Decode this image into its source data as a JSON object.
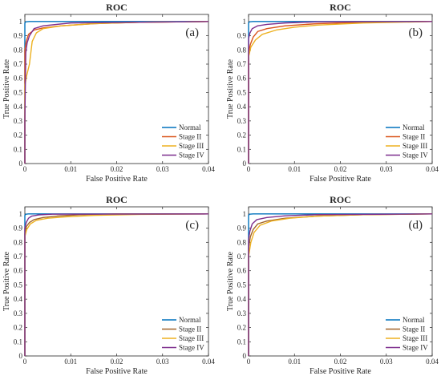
{
  "figure": {
    "colors": {
      "axis": "#262626",
      "Normal": "#0072BD",
      "Stage II": "#D95319",
      "Stage III": "#EDB120",
      "Stage IV": "#7E2F8E",
      "Stage II (c,d)": "#A2642A",
      "Stage III (c,d)": "#EDB120"
    }
  },
  "chart_data": [
    {
      "panel": "(a)",
      "type": "line",
      "title": "ROC",
      "xlabel": "False Positive Rate",
      "ylabel": "True Positive Rate",
      "xlim": [
        0,
        0.04
      ],
      "ylim": [
        0,
        1.05
      ],
      "xticks": [
        "0",
        "0.01",
        "0.02",
        "0.03",
        "0.04"
      ],
      "yticks": [
        "0",
        "0.1",
        "0.2",
        "0.3",
        "0.4",
        "0.5",
        "0.6",
        "0.7",
        "0.8",
        "0.9",
        "1"
      ],
      "grid": false,
      "legend_loc": "lower-right",
      "series": [
        {
          "name": "Normal",
          "color": "#0072BD",
          "x": [
            0,
            0,
            0.0002,
            0.001,
            0.04
          ],
          "y": [
            0,
            0.99,
            0.998,
            1.0,
            1.0
          ]
        },
        {
          "name": "Stage II",
          "color": "#D95319",
          "x": [
            0,
            0,
            0.0003,
            0.0008,
            0.002,
            0.004,
            0.008,
            0.015,
            0.025,
            0.04
          ],
          "y": [
            0,
            0.8,
            0.86,
            0.91,
            0.94,
            0.955,
            0.97,
            0.985,
            0.995,
            1.0
          ]
        },
        {
          "name": "Stage III",
          "color": "#EDB120",
          "x": [
            0,
            0,
            0.0004,
            0.001,
            0.0016,
            0.0025,
            0.004,
            0.008,
            0.015,
            0.025,
            0.04
          ],
          "y": [
            0,
            0.55,
            0.62,
            0.7,
            0.86,
            0.92,
            0.95,
            0.97,
            0.985,
            0.995,
            1.0
          ]
        },
        {
          "name": "Stage IV",
          "color": "#7E2F8E",
          "x": [
            0,
            0,
            0.0002,
            0.0005,
            0.001,
            0.002,
            0.004,
            0.01,
            0.04
          ],
          "y": [
            0,
            0.3,
            0.78,
            0.85,
            0.9,
            0.95,
            0.97,
            0.99,
            1.0
          ]
        }
      ]
    },
    {
      "panel": "(b)",
      "type": "line",
      "title": "ROC",
      "xlabel": "False Positive Rate",
      "ylabel": "True Positive Rate",
      "xlim": [
        0,
        0.04
      ],
      "ylim": [
        0,
        1.05
      ],
      "xticks": [
        "0",
        "0.01",
        "0.02",
        "0.03",
        "0.04"
      ],
      "yticks": [
        "0",
        "0.1",
        "0.2",
        "0.3",
        "0.4",
        "0.5",
        "0.6",
        "0.7",
        "0.8",
        "0.9",
        "1"
      ],
      "grid": false,
      "legend_loc": "lower-right",
      "series": [
        {
          "name": "Normal",
          "color": "#0072BD",
          "x": [
            0,
            0,
            0.0002,
            0.001,
            0.04
          ],
          "y": [
            0,
            0.99,
            0.998,
            1.0,
            1.0
          ]
        },
        {
          "name": "Stage II",
          "color": "#D95319",
          "x": [
            0,
            0,
            0.0004,
            0.001,
            0.002,
            0.004,
            0.008,
            0.015,
            0.025,
            0.04
          ],
          "y": [
            0,
            0.78,
            0.84,
            0.89,
            0.93,
            0.95,
            0.97,
            0.985,
            0.995,
            1.0
          ]
        },
        {
          "name": "Stage III",
          "color": "#EDB120",
          "x": [
            0,
            0,
            0.0005,
            0.0015,
            0.003,
            0.006,
            0.01,
            0.015,
            0.025,
            0.04
          ],
          "y": [
            0,
            0.75,
            0.82,
            0.87,
            0.91,
            0.94,
            0.96,
            0.975,
            0.99,
            1.0
          ]
        },
        {
          "name": "Stage IV",
          "color": "#7E2F8E",
          "x": [
            0,
            0,
            0.0003,
            0.0008,
            0.002,
            0.004,
            0.008,
            0.015,
            0.04
          ],
          "y": [
            0,
            0.88,
            0.92,
            0.95,
            0.97,
            0.98,
            0.99,
            0.998,
            1.0
          ]
        }
      ]
    },
    {
      "panel": "(c)",
      "type": "line",
      "title": "ROC",
      "xlabel": "False Positive Rate",
      "ylabel": "True Positive Rate",
      "xlim": [
        0,
        0.04
      ],
      "ylim": [
        0,
        1.05
      ],
      "xticks": [
        "0",
        "0.01",
        "0.02",
        "0.03",
        "0.04"
      ],
      "yticks": [
        "0",
        "0.1",
        "0.2",
        "0.3",
        "0.4",
        "0.5",
        "0.6",
        "0.7",
        "0.8",
        "0.9",
        "1"
      ],
      "grid": false,
      "legend_loc": "lower-right",
      "series": [
        {
          "name": "Normal",
          "color": "#0072BD",
          "x": [
            0,
            0,
            0.0002,
            0.0008,
            0.04
          ],
          "y": [
            0,
            0.99,
            0.998,
            1.0,
            1.0
          ]
        },
        {
          "name": "Stage II",
          "color": "#A2642A",
          "x": [
            0,
            0,
            0.0003,
            0.001,
            0.002,
            0.004,
            0.007,
            0.012,
            0.02,
            0.04
          ],
          "y": [
            0,
            0.86,
            0.91,
            0.94,
            0.96,
            0.975,
            0.985,
            0.995,
            1.0,
            1.0
          ]
        },
        {
          "name": "Stage III",
          "color": "#EDB120",
          "x": [
            0,
            0,
            0.0004,
            0.0012,
            0.0025,
            0.005,
            0.009,
            0.015,
            0.025,
            0.04
          ],
          "y": [
            0,
            0.84,
            0.89,
            0.93,
            0.955,
            0.97,
            0.98,
            0.99,
            0.997,
            1.0
          ]
        },
        {
          "name": "Stage IV",
          "color": "#7E2F8E",
          "x": [
            0,
            0,
            0.0003,
            0.0008,
            0.0015,
            0.003,
            0.006,
            0.04
          ],
          "y": [
            0,
            0.9,
            0.94,
            0.97,
            0.985,
            0.993,
            0.998,
            1.0
          ]
        }
      ]
    },
    {
      "panel": "(d)",
      "type": "line",
      "title": "ROC",
      "xlabel": "False Positive Rate",
      "ylabel": "True Positive Rate",
      "xlim": [
        0,
        0.04
      ],
      "ylim": [
        0,
        1.05
      ],
      "xticks": [
        "0",
        "0.01",
        "0.02",
        "0.03",
        "0.04"
      ],
      "yticks": [
        "0",
        "0.1",
        "0.2",
        "0.3",
        "0.4",
        "0.5",
        "0.6",
        "0.7",
        "0.8",
        "0.9",
        "1"
      ],
      "grid": false,
      "legend_loc": "lower-right",
      "series": [
        {
          "name": "Normal",
          "color": "#0072BD",
          "x": [
            0,
            0,
            0.0002,
            0.001,
            0.04
          ],
          "y": [
            0,
            0.99,
            0.998,
            1.0,
            1.0
          ]
        },
        {
          "name": "Stage II",
          "color": "#A2642A",
          "x": [
            0,
            0,
            0.0004,
            0.001,
            0.002,
            0.004,
            0.008,
            0.015,
            0.025,
            0.04
          ],
          "y": [
            0,
            0.76,
            0.84,
            0.89,
            0.93,
            0.95,
            0.97,
            0.985,
            0.995,
            1.0
          ]
        },
        {
          "name": "Stage III",
          "color": "#EDB120",
          "x": [
            0,
            0,
            0.0005,
            0.0012,
            0.0025,
            0.005,
            0.009,
            0.015,
            0.025,
            0.04
          ],
          "y": [
            0,
            0.7,
            0.8,
            0.87,
            0.92,
            0.95,
            0.97,
            0.985,
            0.995,
            1.0
          ]
        },
        {
          "name": "Stage IV",
          "color": "#7E2F8E",
          "x": [
            0,
            0,
            0.0003,
            0.0008,
            0.0018,
            0.004,
            0.008,
            0.015,
            0.04
          ],
          "y": [
            0,
            0.82,
            0.88,
            0.93,
            0.96,
            0.975,
            0.987,
            0.995,
            1.0
          ]
        }
      ]
    }
  ]
}
